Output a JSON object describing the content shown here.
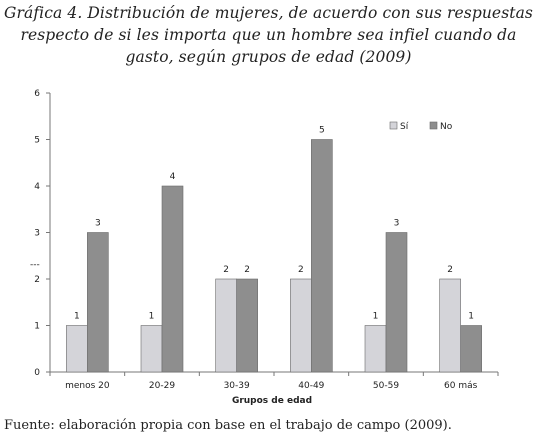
{
  "figure": {
    "title_lines": [
      "Gráfica 4. Distribución de mujeres, de acuerdo con sus respuestas",
      "respecto de si les importa que un hombre sea infiel cuando da",
      "gasto, según grupos de edad (2009)"
    ],
    "source": "Fuente: elaboración propia con base en el trabajo de campo (2009).",
    "mark_text": "---"
  },
  "chart_data": {
    "type": "bar",
    "title": "Gráfica 4. Distribución de mujeres, de acuerdo con sus respuestas respecto de si les importa que un hombre sea infiel cuando da gasto, según grupos de edad (2009)",
    "xlabel": "Grupos de edad",
    "ylabel": "",
    "ylim": [
      0,
      6
    ],
    "yticks": [
      0,
      1,
      2,
      3,
      4,
      5,
      6
    ],
    "categories": [
      "menos 20",
      "20-29",
      "30-39",
      "40-49",
      "50-59",
      "60 más"
    ],
    "series": [
      {
        "name": "Sí",
        "values": [
          1,
          1,
          2,
          2,
          1,
          2
        ],
        "color": "#d4d4d9"
      },
      {
        "name": "No",
        "values": [
          3,
          4,
          2,
          5,
          3,
          1
        ],
        "color": "#8e8e8e"
      }
    ],
    "legend": "top-right",
    "grid": false,
    "data_labels": true
  }
}
